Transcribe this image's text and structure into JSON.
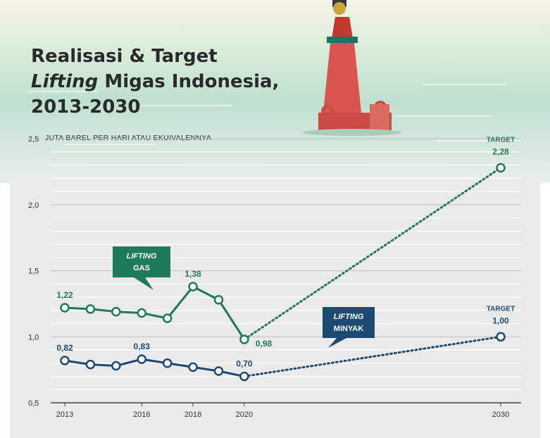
{
  "title": {
    "line1": "Realisasi & Target",
    "line2_italic": "Lifting",
    "line2_rest": " Migas Indonesia,",
    "line3": "2013-2030"
  },
  "unit_label": "JUTA BAREL PER HARI ATAU EKUIVALENNYA",
  "colors": {
    "gas": "#1f7a5a",
    "oil": "#1d4a73",
    "sea_top": "#cfe7da",
    "panel": "#eaeaea"
  },
  "chart_data": {
    "type": "line",
    "ylim": [
      0.5,
      2.5
    ],
    "y_ticks": [
      0.5,
      1.0,
      1.5,
      2.0,
      2.5
    ],
    "y_tick_labels": [
      "0,5",
      "1,0",
      "1,5",
      "2,0",
      "2,5"
    ],
    "x_ticks": [
      2013,
      2016,
      2018,
      2020,
      2030
    ],
    "x_tick_labels": [
      "2013",
      "2016",
      "2018",
      "2020",
      "2030"
    ],
    "grid": true,
    "series": [
      {
        "name": "LIFTING GAS",
        "label_italic": "LIFTING",
        "label_rest": "GAS",
        "color": "#1f7a5a",
        "x": [
          2013,
          2014,
          2015,
          2016,
          2017,
          2018,
          2019,
          2020
        ],
        "values": [
          1.22,
          1.21,
          1.19,
          1.18,
          1.14,
          1.38,
          1.28,
          0.98
        ],
        "labeled": {
          "2013": "1,22",
          "2018": "1,38",
          "2020": "0,98"
        },
        "target": {
          "x": 2030,
          "value": 2.28,
          "label": "2,28",
          "tag": "TARGET"
        }
      },
      {
        "name": "LIFTING MINYAK",
        "label_italic": "LIFTING",
        "label_rest": "MINYAK",
        "color": "#1d4a73",
        "x": [
          2013,
          2014,
          2015,
          2016,
          2017,
          2018,
          2019,
          2020
        ],
        "values": [
          0.82,
          0.79,
          0.78,
          0.83,
          0.8,
          0.77,
          0.74,
          0.7
        ],
        "labeled": {
          "2013": "0,82",
          "2016": "0,83",
          "2020": "0,70"
        },
        "target": {
          "x": 2030,
          "value": 1.0,
          "label": "1,00",
          "tag": "TARGET"
        }
      }
    ]
  }
}
